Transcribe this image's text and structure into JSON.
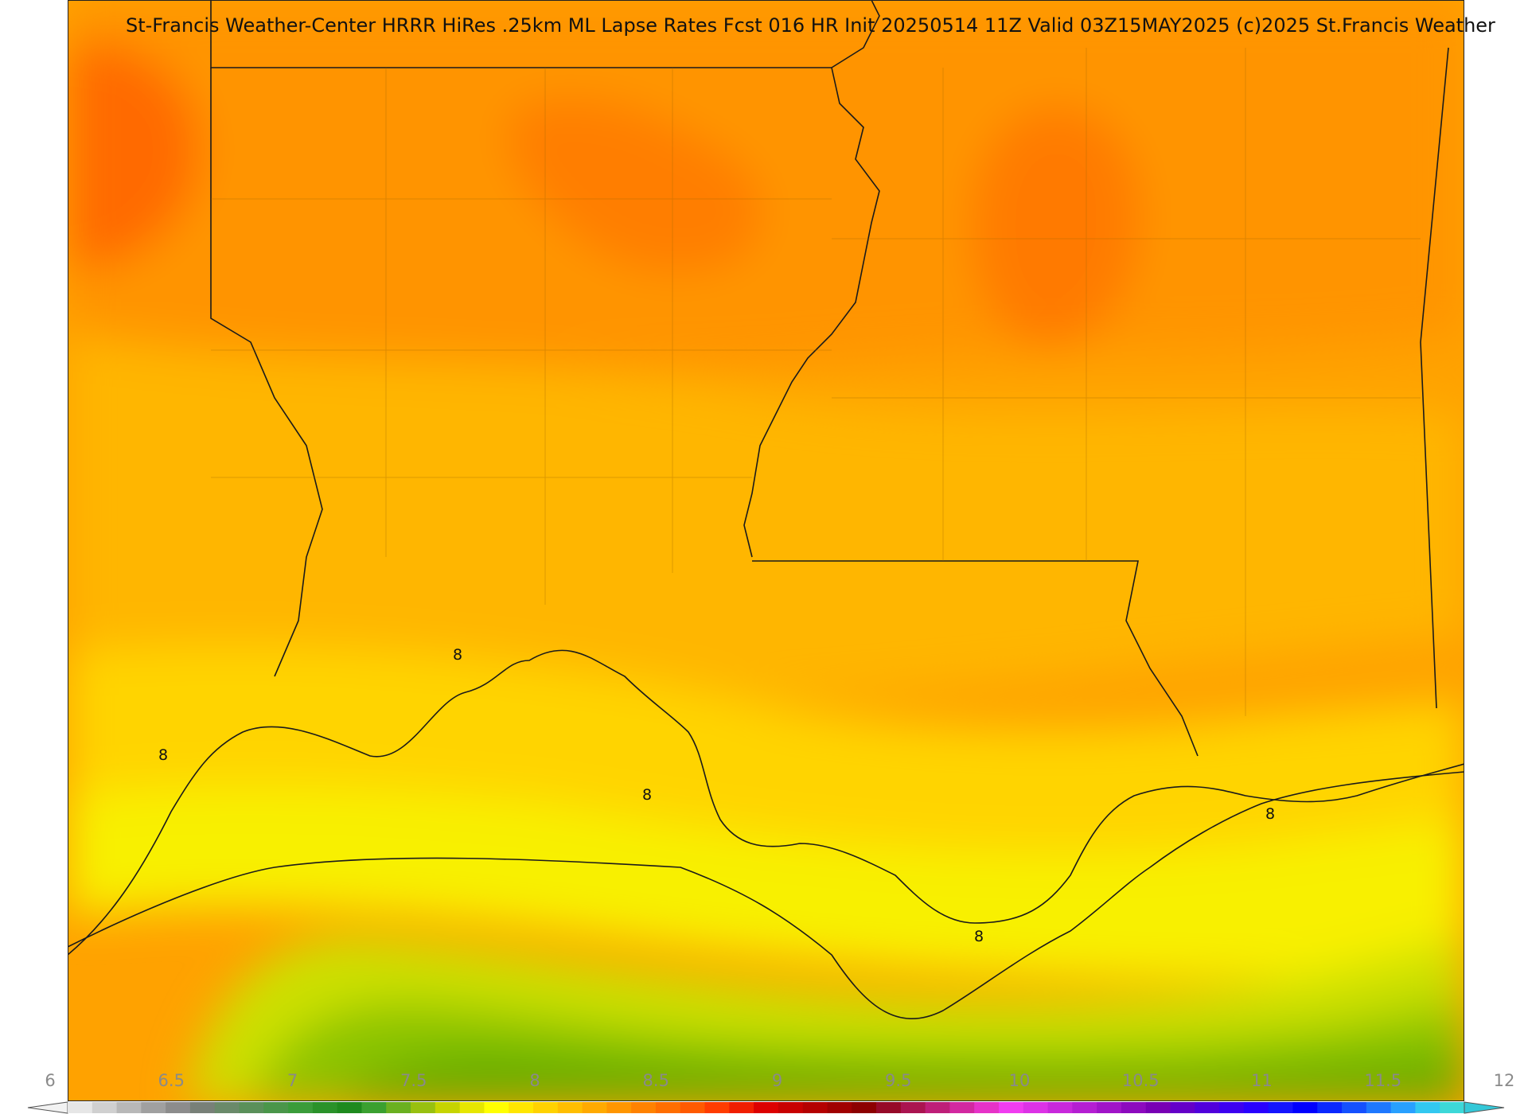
{
  "map": {
    "title": "St-Francis Weather-Center HRRR HiRes .25km ML Lapse Rates  Fcst 016 HR Init 20250514 11Z  Valid 03Z15MAY2025    (c)2025 St.Francis Weather",
    "contour_labels": [
      "8",
      "8",
      "8",
      "8",
      "8"
    ]
  },
  "colorbar": {
    "ticks": [
      "6",
      "6.5",
      "7",
      "7.5",
      "8",
      "8.5",
      "9",
      "9.5",
      "10",
      "10.5",
      "11",
      "11.5",
      "12"
    ],
    "colors": [
      "#e6e6e6",
      "#d0d0d0",
      "#b8b8b8",
      "#a0a0a0",
      "#8c8c8c",
      "#788078",
      "#6a8a6a",
      "#5a905a",
      "#4a964a",
      "#3a9c3a",
      "#2a922a",
      "#1e8a1e",
      "#3aa030",
      "#6ab020",
      "#98c010",
      "#c6d400",
      "#e6e600",
      "#ffff00",
      "#ffe600",
      "#ffd200",
      "#ffbe00",
      "#ffaa00",
      "#ff9600",
      "#ff8200",
      "#ff6e00",
      "#ff5a00",
      "#ff3c00",
      "#f01e00",
      "#dc0000",
      "#c80000",
      "#b40000",
      "#a00000",
      "#8c0000",
      "#960a28",
      "#aa1450",
      "#be1e78",
      "#d228a0",
      "#e632c8",
      "#f03cf0",
      "#dc32e6",
      "#c828dc",
      "#b41ed2",
      "#a014c8",
      "#8c0abe",
      "#7800b4",
      "#6400c8",
      "#5000dc",
      "#3c00f0",
      "#2800ff",
      "#1414ff",
      "#0000ff",
      "#0a28ff",
      "#1450ff",
      "#1e78ff",
      "#28a0ff",
      "#32c8f0",
      "#3cd8d8"
    ]
  }
}
